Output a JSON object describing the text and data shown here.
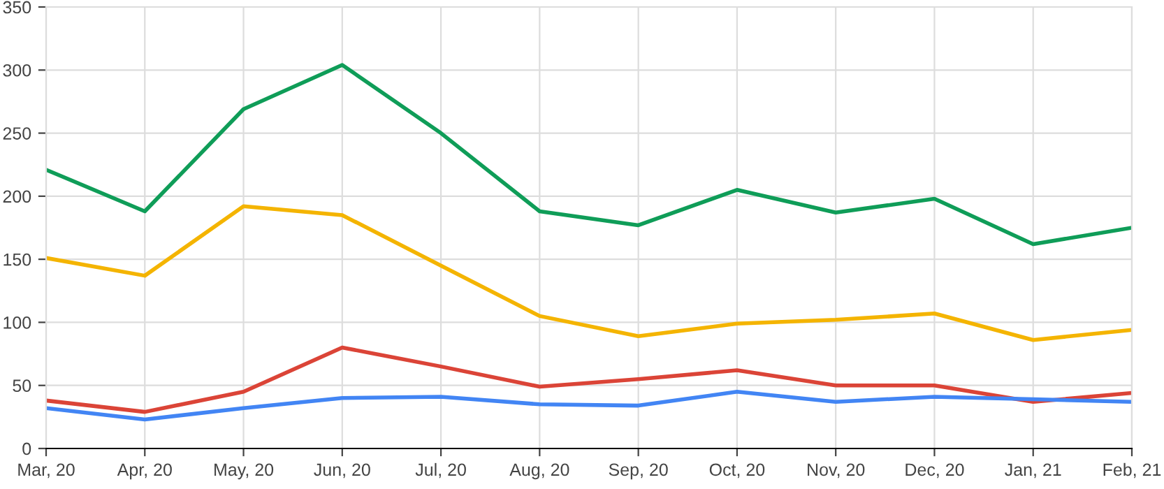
{
  "chart_data": {
    "type": "line",
    "categories": [
      "Mar, 20",
      "Apr, 20",
      "May, 20",
      "Jun, 20",
      "Jul, 20",
      "Aug, 20",
      "Sep, 20",
      "Oct, 20",
      "Nov, 20",
      "Dec, 20",
      "Jan, 21",
      "Feb, 21"
    ],
    "series": [
      {
        "color": "#0f9d58",
        "values": [
          221,
          188,
          269,
          304,
          250,
          188,
          177,
          205,
          187,
          198,
          162,
          175
        ]
      },
      {
        "color": "#f4b400",
        "values": [
          151,
          137,
          192,
          185,
          145,
          105,
          89,
          99,
          102,
          107,
          86,
          94
        ]
      },
      {
        "color": "#db4437",
        "values": [
          38,
          29,
          45,
          80,
          65,
          49,
          55,
          62,
          50,
          50,
          37,
          44
        ]
      },
      {
        "color": "#4285f4",
        "values": [
          32,
          23,
          32,
          40,
          41,
          35,
          34,
          45,
          37,
          41,
          39,
          37
        ]
      }
    ],
    "ylim": [
      0,
      350
    ],
    "yticks": [
      0,
      50,
      100,
      150,
      200,
      250,
      300,
      350
    ],
    "grid": true,
    "marker": "none",
    "line_style": "solid"
  }
}
